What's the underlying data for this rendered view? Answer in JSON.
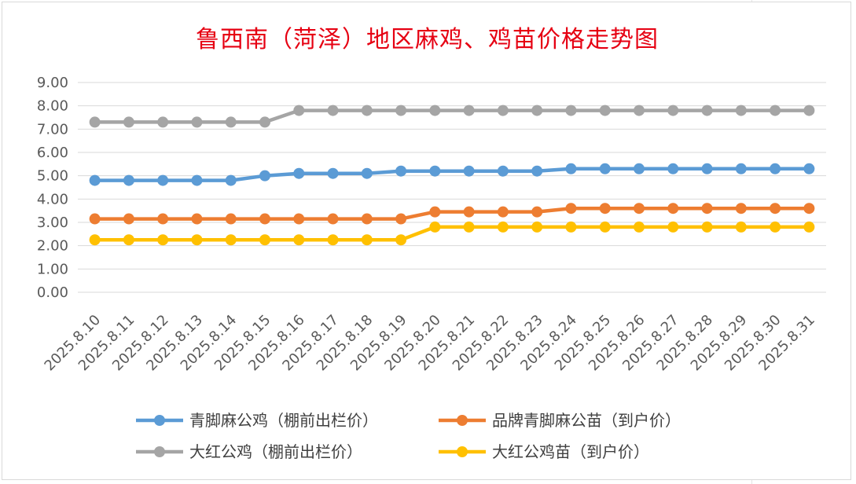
{
  "chart_data": {
    "type": "line",
    "title": "鲁西南（菏泽）地区麻鸡、鸡苗价格走势图",
    "title_color": "#e60012",
    "xlabel": "",
    "ylabel": "",
    "ylim": [
      0,
      9
    ],
    "yticks": [
      "0.00",
      "1.00",
      "2.00",
      "3.00",
      "4.00",
      "5.00",
      "6.00",
      "7.00",
      "8.00",
      "9.00"
    ],
    "grid": true,
    "legend_position": "bottom",
    "categories": [
      "2025.8.10",
      "2025.8.11",
      "2025.8.12",
      "2025.8.13",
      "2025.8.14",
      "2025.8.15",
      "2025.8.16",
      "2025.8.17",
      "2025.8.18",
      "2025.8.19",
      "2025.8.20",
      "2025.8.21",
      "2025.8.22",
      "2025.8.23",
      "2025.8.24",
      "2025.8.25",
      "2025.8.26",
      "2025.8.27",
      "2025.8.28",
      "2025.8.29",
      "2025.8.30",
      "2025.8.31"
    ],
    "series": [
      {
        "name": "青脚麻公鸡（棚前出栏价）",
        "color": "#5b9bd5",
        "values": [
          4.8,
          4.8,
          4.8,
          4.8,
          4.8,
          5.0,
          5.1,
          5.1,
          5.1,
          5.2,
          5.2,
          5.2,
          5.2,
          5.2,
          5.3,
          5.3,
          5.3,
          5.3,
          5.3,
          5.3,
          5.3,
          5.3
        ]
      },
      {
        "name": "品牌青脚麻公苗（到户价）",
        "color": "#ed7d31",
        "values": [
          3.15,
          3.15,
          3.15,
          3.15,
          3.15,
          3.15,
          3.15,
          3.15,
          3.15,
          3.15,
          3.45,
          3.45,
          3.45,
          3.45,
          3.6,
          3.6,
          3.6,
          3.6,
          3.6,
          3.6,
          3.6,
          3.6
        ]
      },
      {
        "name": "大红公鸡（棚前出栏价）",
        "color": "#a5a5a5",
        "values": [
          7.3,
          7.3,
          7.3,
          7.3,
          7.3,
          7.3,
          7.8,
          7.8,
          7.8,
          7.8,
          7.8,
          7.8,
          7.8,
          7.8,
          7.8,
          7.8,
          7.8,
          7.8,
          7.8,
          7.8,
          7.8,
          7.8
        ]
      },
      {
        "name": "大红公鸡苗（到户价）",
        "color": "#ffc000",
        "values": [
          2.25,
          2.25,
          2.25,
          2.25,
          2.25,
          2.25,
          2.25,
          2.25,
          2.25,
          2.25,
          2.8,
          2.8,
          2.8,
          2.8,
          2.8,
          2.8,
          2.8,
          2.8,
          2.8,
          2.8,
          2.8,
          2.8
        ]
      }
    ]
  }
}
